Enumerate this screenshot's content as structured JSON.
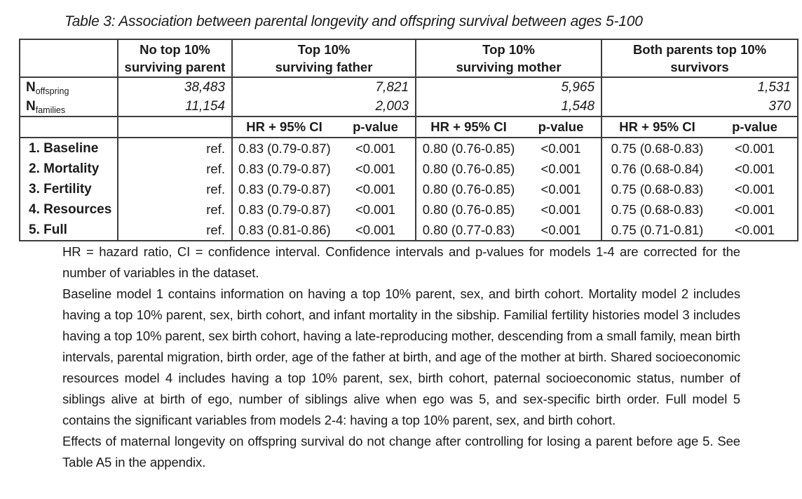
{
  "page": {
    "title": "Table 3: Association between parental longevity and offspring survival between ages 5-100"
  },
  "colors": {
    "page_background": "#ffffff",
    "text": "#1b1b1b",
    "table_border": "#3d3d3d"
  },
  "table": {
    "group_headers": [
      {
        "line1": "No top 10%",
        "line2": "surviving parent"
      },
      {
        "line1": "Top 10%",
        "line2": "surviving father"
      },
      {
        "line1": "Top 10%",
        "line2": "surviving mother"
      },
      {
        "line1": "Both parents top 10%",
        "line2": "survivors"
      }
    ],
    "n_rows": [
      {
        "symbol": "N",
        "subscript": "offspring",
        "values": [
          "38,483",
          "7,821",
          "5,965",
          "1,531"
        ]
      },
      {
        "symbol": "N",
        "subscript": "families",
        "values": [
          "11,154",
          "2,003",
          "1,548",
          "370"
        ]
      }
    ],
    "subheader": {
      "hr": "HR + 95% CI",
      "p": "p-value"
    },
    "model_rows": [
      {
        "label": "1. Baseline",
        "ref": "ref.",
        "father_hr": "0.83 (0.79-0.87)",
        "father_p": "<0.001",
        "mother_hr": "0.80 (0.76-0.85)",
        "mother_p": "<0.001",
        "both_hr": "0.75 (0.68-0.83)",
        "both_p": "<0.001"
      },
      {
        "label": "2. Mortality",
        "ref": "ref.",
        "father_hr": "0.83 (0.79-0.87)",
        "father_p": "<0.001",
        "mother_hr": "0.80 (0.76-0.85)",
        "mother_p": "<0.001",
        "both_hr": "0.76 (0.68-0.84)",
        "both_p": "<0.001"
      },
      {
        "label": "3. Fertility",
        "ref": "ref.",
        "father_hr": "0.83 (0.79-0.87)",
        "father_p": "<0.001",
        "mother_hr": "0.80 (0.76-0.85)",
        "mother_p": "<0.001",
        "both_hr": "0.75 (0.68-0.83)",
        "both_p": "<0.001"
      },
      {
        "label": "4. Resources",
        "ref": "ref.",
        "father_hr": "0.83 (0.79-0.87)",
        "father_p": "<0.001",
        "mother_hr": "0.80 (0.76-0.85)",
        "mother_p": "<0.001",
        "both_hr": "0.75 (0.68-0.83)",
        "both_p": "<0.001"
      },
      {
        "label": "5. Full",
        "ref": "ref.",
        "father_hr": "0.83 (0.81-0.86)",
        "father_p": "<0.001",
        "mother_hr": "0.80 (0.77-0.83)",
        "mother_p": "<0.001",
        "both_hr": "0.75 (0.71-0.81)",
        "both_p": "<0.001"
      }
    ]
  },
  "notes": {
    "p1": "HR = hazard ratio, CI = confidence interval. Confidence intervals and p-values for models 1-4 are corrected for the number of variables in the dataset.",
    "p2": "Baseline model 1 contains information on having a top 10% parent, sex, and birth cohort. Mortality model 2 includes having a top 10% parent, sex, birth cohort, and infant mortality in the sibship. Familial fertility histories model 3 includes having a top 10% parent, sex birth cohort, having a late-reproducing mother, descending from a small family, mean birth intervals, parental migration, birth order, age of the father at birth, and age of the mother at birth. Shared socioeconomic resources model 4 includes having a top 10% parent, sex, birth cohort, paternal socioeconomic status, number of siblings alive at birth of ego, number of siblings alive when ego was 5, and sex-specific birth order. Full model 5 contains the significant variables from models 2-4: having a top 10% parent, sex, and birth cohort.",
    "p3": "Effects of maternal longevity on offspring survival do not change after controlling for losing a parent before age 5. See Table A5 in the appendix."
  }
}
